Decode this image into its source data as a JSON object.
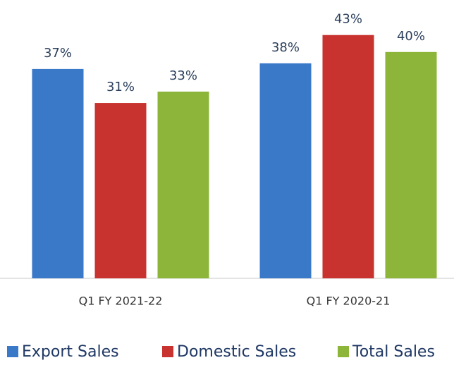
{
  "chart_data": {
    "type": "bar",
    "categories": [
      "Q1 FY 2021-22",
      "Q1 FY 2020-21"
    ],
    "series": [
      {
        "name": "Export Sales",
        "color": "#3a78c8",
        "values": [
          37,
          38
        ],
        "value_labels": [
          "37%",
          "38%"
        ]
      },
      {
        "name": "Domestic Sales",
        "color": "#c8322f",
        "values": [
          31,
          43
        ],
        "value_labels": [
          "31%",
          "43%"
        ]
      },
      {
        "name": "Total Sales",
        "color": "#8db53a",
        "values": [
          33,
          40
        ],
        "value_labels": [
          "33%",
          "40%"
        ]
      }
    ],
    "legend": "bottom"
  }
}
